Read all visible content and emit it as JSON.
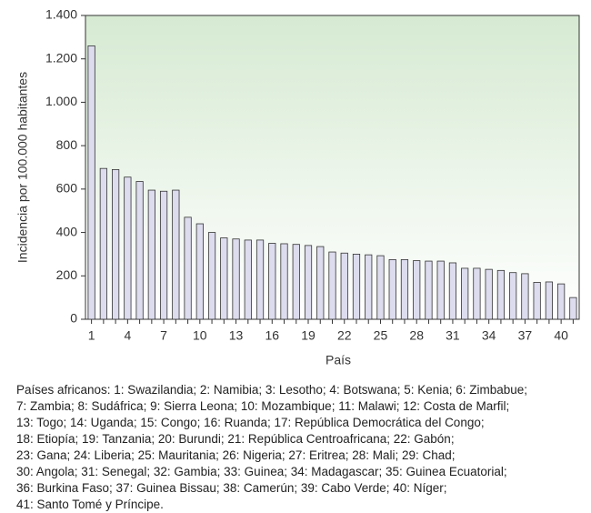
{
  "chart_data": {
    "type": "bar",
    "xlabel": "País",
    "ylabel": "Incidencia por 100.000 habitantes",
    "categories": [
      1,
      null,
      null,
      4,
      null,
      null,
      7,
      null,
      null,
      10,
      null,
      null,
      13,
      null,
      null,
      16,
      null,
      null,
      19,
      null,
      null,
      22,
      null,
      null,
      25,
      null,
      null,
      28,
      null,
      null,
      31,
      null,
      null,
      34,
      null,
      null,
      37,
      null,
      null,
      40,
      null
    ],
    "values": [
      1260,
      695,
      690,
      655,
      635,
      595,
      590,
      595,
      470,
      440,
      400,
      375,
      370,
      365,
      365,
      350,
      348,
      345,
      340,
      335,
      310,
      305,
      300,
      297,
      293,
      275,
      275,
      270,
      268,
      268,
      260,
      235,
      235,
      230,
      225,
      215,
      210,
      170,
      172,
      163,
      100
    ],
    "color": "#dcdcee",
    "ylim": [
      0,
      1400
    ],
    "yticks": [
      0,
      200,
      400,
      600,
      800,
      {
        "value": 1000,
        "label": "1.000"
      },
      {
        "value": 1200,
        "label": "1.200"
      },
      {
        "value": 1400,
        "label": "1.400"
      }
    ],
    "caption": [
      "Países africanos: 1: Swazilandia; 2: Namibia; 3: Lesotho; 4: Botswana; 5: Kenia; 6: Zimbabue;",
      "7: Zambia; 8: Sudáfrica; 9: Sierra Leona; 10: Mozambique; 11: Malawi; 12: Costa de Marfil;",
      "13: Togo; 14: Uganda; 15: Congo; 16: Ruanda; 17: República Democrática del Congo;",
      "18: Etiopía; 19: Tanzania; 20: Burundi; 21: República Centroafricana; 22: Gabón;",
      "23: Gana; 24: Liberia; 25: Mauritania; 26: Nigeria; 27: Eritrea; 28: Mali; 29: Chad;",
      "30: Angola; 31: Senegal; 32: Gambia; 33: Guinea; 34: Madagascar; 35: Guinea Ecuatorial;",
      "36: Burkina Faso; 37: Guinea Bissau; 38: Camerún; 39: Cabo Verde; 40: Níger;",
      "41: Santo Tomé y Príncipe."
    ]
  }
}
